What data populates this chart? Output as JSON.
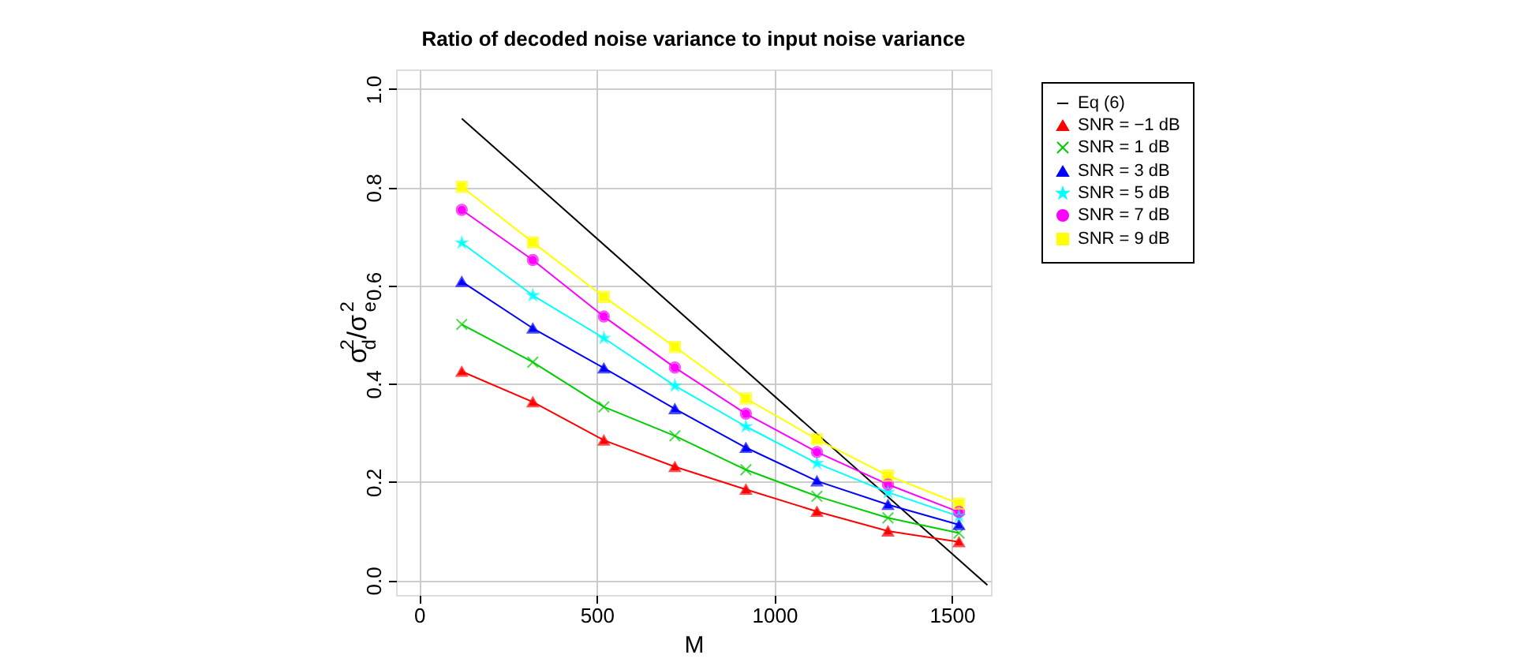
{
  "chart_data": {
    "type": "line",
    "title": "Ratio of decoded noise variance to input noise variance",
    "xlabel": "M",
    "ylabel": "σ$_{d}$$^{2}$/σ$_{e}$$^{2}$",
    "xlim": [
      -65,
      1610
    ],
    "ylim": [
      -0.03,
      1.04
    ],
    "xticks": [
      0,
      500,
      1000,
      1500
    ],
    "yticks": [
      {
        "value": 0,
        "label": "0.0"
      },
      0.2,
      0.4,
      0.6,
      0.8,
      {
        "value": 1,
        "label": "1.0"
      }
    ],
    "grid": true,
    "legend": "top right",
    "series": [
      {
        "name": "Eq (6)",
        "color": "#000000",
        "marker": "none",
        "x": [
          120,
          1600
        ],
        "values": [
          0.94,
          -0.01
        ]
      },
      {
        "name": "SNR = −1 dB",
        "color": "#ff0000",
        "marker": "triangle",
        "x": [
          120,
          320,
          520,
          720,
          920,
          1120,
          1320,
          1520
        ],
        "values": [
          0.425,
          0.363,
          0.285,
          0.231,
          0.185,
          0.14,
          0.1,
          0.078
        ]
      },
      {
        "name": "SNR = 1 dB",
        "color": "#00cd00",
        "marker": "cross",
        "x": [
          120,
          320,
          520,
          720,
          920,
          1120,
          1320,
          1520
        ],
        "values": [
          0.521,
          0.444,
          0.353,
          0.294,
          0.225,
          0.171,
          0.127,
          0.096
        ]
      },
      {
        "name": "SNR = 3 dB",
        "color": "#0000ff",
        "marker": "triangle",
        "x": [
          120,
          320,
          520,
          720,
          920,
          1120,
          1320,
          1520
        ],
        "values": [
          0.608,
          0.513,
          0.432,
          0.349,
          0.27,
          0.202,
          0.154,
          0.113
        ]
      },
      {
        "name": "SNR = 5 dB",
        "color": "#00ffff",
        "marker": "star",
        "x": [
          120,
          320,
          520,
          720,
          920,
          1120,
          1320,
          1520
        ],
        "values": [
          0.687,
          0.58,
          0.493,
          0.396,
          0.313,
          0.238,
          0.179,
          0.13
        ]
      },
      {
        "name": "SNR = 7 dB",
        "color": "#ff00ff",
        "marker": "circle",
        "x": [
          120,
          320,
          520,
          720,
          920,
          1120,
          1320,
          1520
        ],
        "values": [
          0.754,
          0.652,
          0.537,
          0.433,
          0.339,
          0.261,
          0.195,
          0.139
        ]
      },
      {
        "name": "SNR = 9 dB",
        "color": "#ffff00",
        "marker": "square",
        "x": [
          120,
          320,
          520,
          720,
          920,
          1120,
          1320,
          1520
        ],
        "values": [
          0.801,
          0.688,
          0.577,
          0.475,
          0.37,
          0.287,
          0.213,
          0.156
        ]
      }
    ]
  }
}
